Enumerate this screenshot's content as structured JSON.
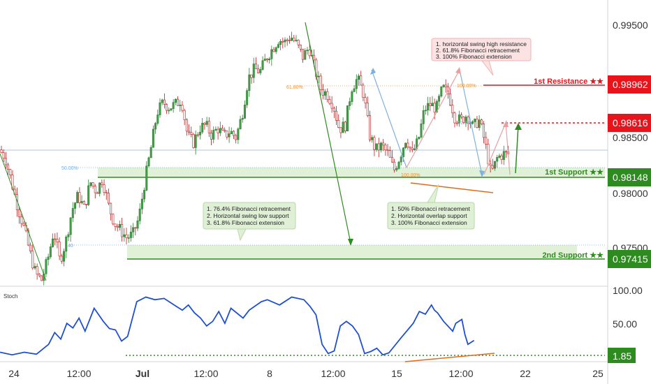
{
  "chart_data": {
    "type": "candlestick",
    "x_tick_labels": [
      "24",
      "12:00",
      "Jul",
      "12:00",
      "8",
      "12:00",
      "15",
      "12:00",
      "22",
      "25"
    ],
    "price_axis": {
      "ticks": [
        "0.99500",
        "0.98500",
        "0.98000",
        "0.97500"
      ],
      "ylim": [
        0.9704,
        0.9981
      ]
    },
    "stoch_axis": {
      "label": "Stoch",
      "ticks": [
        "100.00",
        "50.00"
      ],
      "ylim": [
        0,
        100
      ]
    },
    "levels": [
      {
        "name": "1st Resistance ★★",
        "value": "0.98962",
        "price": 0.98962,
        "color": "#e8141b",
        "style": "solid"
      },
      {
        "name": "",
        "value": "0.98616",
        "price": 0.98616,
        "color": "#e8141b",
        "style": "dotted"
      },
      {
        "name": "1st Support ★★",
        "value": "0.98148",
        "price": 0.98148,
        "color": "#2e8b1f",
        "style": "solid"
      },
      {
        "name": "2nd Support ★★",
        "value": "0.97415",
        "price": 0.97415,
        "color": "#2e8b1f",
        "style": "solid"
      }
    ],
    "stoch_level": {
      "value": "1.85",
      "level": 1.85,
      "color": "#2e8b1f"
    },
    "fib_labels": [
      "61.80%",
      "50.00%",
      "100.00%",
      "100.00%",
      "61.8%",
      ".40"
    ],
    "annotations": {
      "resistance": [
        "1. horizontal swing high resistance",
        "2. 61.8% Fibonacci retracement",
        "3. 100% Fibonacci extension"
      ],
      "first_support": [
        "1. 50% Fibonacci retracement",
        "2. Horizontal overlap support",
        "3. 100% Fibonacci extension"
      ],
      "second_support": [
        "1. 76.4% Fibonacci retracement",
        "2. Horizontal swing low support",
        "3. 61.8% Fibonacci extension"
      ]
    },
    "price_path": [
      [
        0,
        0.9836
      ],
      [
        0.01,
        0.9829
      ],
      [
        0.02,
        0.9806
      ],
      [
        0.03,
        0.9782
      ],
      [
        0.04,
        0.9762
      ],
      [
        0.05,
        0.9738
      ],
      [
        0.06,
        0.9716
      ],
      [
        0.07,
        0.971
      ],
      [
        0.08,
        0.973
      ],
      [
        0.09,
        0.9758
      ],
      [
        0.1,
        0.9728
      ],
      [
        0.11,
        0.9748
      ],
      [
        0.12,
        0.9778
      ],
      [
        0.13,
        0.9792
      ],
      [
        0.14,
        0.9779
      ],
      [
        0.15,
        0.9805
      ],
      [
        0.16,
        0.9796
      ],
      [
        0.17,
        0.9808
      ],
      [
        0.18,
        0.9782
      ],
      [
        0.19,
        0.9765
      ],
      [
        0.2,
        0.9758
      ],
      [
        0.21,
        0.9751
      ],
      [
        0.22,
        0.9754
      ],
      [
        0.23,
        0.977
      ],
      [
        0.24,
        0.9806
      ],
      [
        0.25,
        0.9838
      ],
      [
        0.26,
        0.9872
      ],
      [
        0.27,
        0.9882
      ],
      [
        0.28,
        0.9877
      ],
      [
        0.29,
        0.988
      ],
      [
        0.3,
        0.9885
      ],
      [
        0.31,
        0.985
      ],
      [
        0.32,
        0.9843
      ],
      [
        0.33,
        0.9857
      ],
      [
        0.34,
        0.986
      ],
      [
        0.35,
        0.985
      ],
      [
        0.36,
        0.9857
      ],
      [
        0.37,
        0.9849
      ],
      [
        0.38,
        0.9854
      ],
      [
        0.39,
        0.9848
      ],
      [
        0.4,
        0.987
      ],
      [
        0.41,
        0.9905
      ],
      [
        0.42,
        0.9914
      ],
      [
        0.43,
        0.9912
      ],
      [
        0.44,
        0.9925
      ],
      [
        0.45,
        0.9934
      ],
      [
        0.46,
        0.9943
      ],
      [
        0.47,
        0.994
      ],
      [
        0.48,
        0.9946
      ],
      [
        0.49,
        0.9938
      ],
      [
        0.5,
        0.9926
      ],
      [
        0.51,
        0.9935
      ],
      [
        0.52,
        0.9914
      ],
      [
        0.53,
        0.9894
      ],
      [
        0.54,
        0.989
      ],
      [
        0.55,
        0.988
      ],
      [
        0.56,
        0.9856
      ],
      [
        0.57,
        0.986
      ],
      [
        0.58,
        0.9896
      ],
      [
        0.59,
        0.9905
      ],
      [
        0.6,
        0.989
      ],
      [
        0.61,
        0.985
      ],
      [
        0.62,
        0.9836
      ],
      [
        0.63,
        0.984
      ],
      [
        0.64,
        0.9832
      ],
      [
        0.65,
        0.9816
      ],
      [
        0.66,
        0.983
      ],
      [
        0.67,
        0.9848
      ],
      [
        0.68,
        0.9832
      ],
      [
        0.69,
        0.9845
      ],
      [
        0.7,
        0.9875
      ],
      [
        0.71,
        0.988
      ],
      [
        0.72,
        0.9876
      ],
      [
        0.73,
        0.9896
      ],
      [
        0.74,
        0.989
      ],
      [
        0.75,
        0.9868
      ],
      [
        0.76,
        0.9864
      ],
      [
        0.77,
        0.987
      ],
      [
        0.78,
        0.9858
      ],
      [
        0.79,
        0.9865
      ],
      [
        0.8,
        0.9843
      ],
      [
        0.81,
        0.9812
      ],
      [
        0.82,
        0.9828
      ],
      [
        0.83,
        0.9832
      ]
    ],
    "stoch_path": [
      [
        0,
        8
      ],
      [
        0.02,
        4
      ],
      [
        0.04,
        8
      ],
      [
        0.06,
        5
      ],
      [
        0.08,
        20
      ],
      [
        0.09,
        38
      ],
      [
        0.1,
        28
      ],
      [
        0.11,
        52
      ],
      [
        0.12,
        45
      ],
      [
        0.13,
        60
      ],
      [
        0.14,
        40
      ],
      [
        0.155,
        75
      ],
      [
        0.17,
        55
      ],
      [
        0.18,
        44
      ],
      [
        0.19,
        42
      ],
      [
        0.2,
        25
      ],
      [
        0.21,
        32
      ],
      [
        0.225,
        85
      ],
      [
        0.24,
        92
      ],
      [
        0.255,
        88
      ],
      [
        0.27,
        90
      ],
      [
        0.29,
        78
      ],
      [
        0.3,
        72
      ],
      [
        0.31,
        80
      ],
      [
        0.32,
        68
      ],
      [
        0.33,
        60
      ],
      [
        0.34,
        48
      ],
      [
        0.35,
        55
      ],
      [
        0.36,
        70
      ],
      [
        0.37,
        52
      ],
      [
        0.38,
        75
      ],
      [
        0.4,
        60
      ],
      [
        0.41,
        72
      ],
      [
        0.43,
        85
      ],
      [
        0.44,
        88
      ],
      [
        0.46,
        80
      ],
      [
        0.48,
        92
      ],
      [
        0.5,
        88
      ],
      [
        0.51,
        78
      ],
      [
        0.52,
        65
      ],
      [
        0.53,
        20
      ],
      [
        0.54,
        6
      ],
      [
        0.55,
        10
      ],
      [
        0.56,
        48
      ],
      [
        0.57,
        55
      ],
      [
        0.58,
        48
      ],
      [
        0.59,
        35
      ],
      [
        0.6,
        6
      ],
      [
        0.61,
        9
      ],
      [
        0.62,
        14
      ],
      [
        0.63,
        4
      ],
      [
        0.64,
        7
      ],
      [
        0.66,
        30
      ],
      [
        0.68,
        52
      ],
      [
        0.69,
        70
      ],
      [
        0.7,
        66
      ],
      [
        0.71,
        80
      ],
      [
        0.715,
        72
      ],
      [
        0.72,
        68
      ],
      [
        0.73,
        55
      ],
      [
        0.745,
        40
      ],
      [
        0.75,
        52
      ],
      [
        0.76,
        58
      ],
      [
        0.765,
        35
      ],
      [
        0.77,
        20
      ],
      [
        0.78,
        26
      ]
    ]
  }
}
